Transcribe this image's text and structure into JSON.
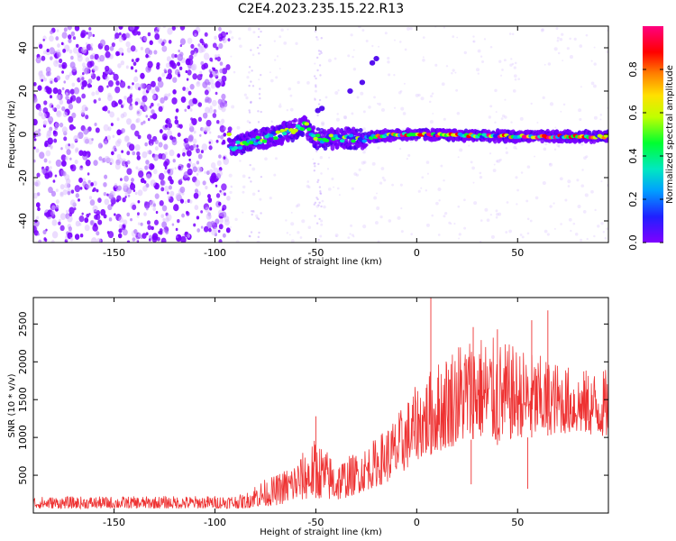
{
  "title": "C2E4.2023.235.15.22.R13",
  "colors": {
    "snr_line": "#ee3333",
    "axis": "#000000",
    "colormap": [
      "#8000ff",
      "#2020ff",
      "#00a0ff",
      "#00e8c0",
      "#00ff30",
      "#c0ff00",
      "#ffe000",
      "#ff8000",
      "#ff0000",
      "#ff0080"
    ]
  },
  "chart_data": [
    {
      "type": "heatmap",
      "xlabel": "Height of straight line (km)",
      "ylabel": "Frequency (Hz)",
      "xlim": [
        -190,
        95
      ],
      "ylim": [
        -50,
        50
      ],
      "xticks": [
        -150,
        -100,
        -50,
        0,
        50
      ],
      "yticks": [
        -40,
        -20,
        0,
        20,
        40
      ],
      "colorbar": {
        "label": "Normalized spectral amplitude",
        "range": [
          0.0,
          1.0
        ],
        "ticks": [
          0.0,
          0.2,
          0.4,
          0.6,
          0.8
        ]
      },
      "structure": {
        "noise_region_x": [
          -190,
          -93
        ],
        "tone_start_x": -93,
        "tone_freq_hz": [
          [
            -92,
            -6
          ],
          [
            -80,
            -3
          ],
          [
            -65,
            1
          ],
          [
            -55,
            4
          ],
          [
            -50,
            -2
          ],
          [
            -30,
            -2
          ],
          [
            -10,
            0
          ],
          [
            0,
            0
          ],
          [
            50,
            -1
          ],
          [
            93,
            -1
          ]
        ],
        "echo_points": [
          [
            -49,
            11
          ],
          [
            -47,
            12
          ],
          [
            -33,
            20
          ],
          [
            -27,
            24
          ],
          [
            -22,
            33
          ],
          [
            -20,
            35
          ]
        ]
      }
    },
    {
      "type": "line",
      "xlabel": "Height of straight line (km)",
      "ylabel": "SNR (10 * v/v)",
      "xlim": [
        -190,
        95
      ],
      "ylim": [
        0,
        2850
      ],
      "xticks": [
        -150,
        -100,
        -50,
        0,
        50
      ],
      "yticks": [
        500,
        1000,
        1500,
        2000,
        2500
      ],
      "envelope": {
        "x": [
          -190,
          -150,
          -100,
          -85,
          -80,
          -70,
          -60,
          -50,
          -40,
          -30,
          -20,
          -10,
          0,
          10,
          20,
          30,
          40,
          50,
          60,
          70,
          80,
          93
        ],
        "low": [
          60,
          60,
          60,
          60,
          80,
          100,
          150,
          200,
          150,
          250,
          350,
          450,
          700,
          800,
          900,
          1000,
          900,
          1000,
          1000,
          1050,
          1050,
          1000
        ],
        "high": [
          220,
          220,
          230,
          250,
          400,
          500,
          700,
          1000,
          700,
          800,
          1000,
          1300,
          1700,
          2000,
          2300,
          2400,
          2300,
          2200,
          2100,
          2000,
          1900,
          1900
        ]
      },
      "spikes": [
        [
          7,
          2850
        ],
        [
          -50,
          1280
        ],
        [
          57,
          2550
        ],
        [
          65,
          2680
        ],
        [
          28,
          2460
        ],
        [
          40,
          2430
        ],
        [
          55,
          320
        ],
        [
          27,
          380
        ]
      ]
    }
  ]
}
